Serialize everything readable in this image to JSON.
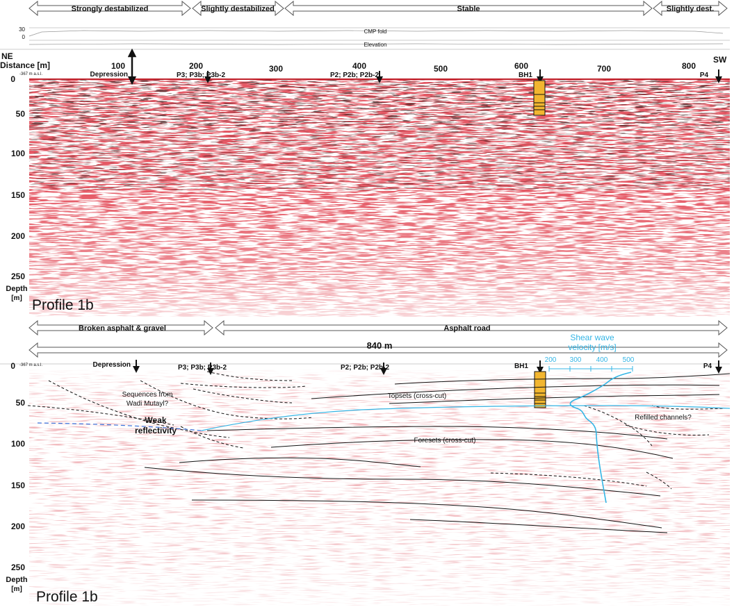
{
  "top": {
    "zones": [
      "Strongly destabilized",
      "Slightly destabilized",
      "Stable",
      "Slightly dest."
    ],
    "cmp_fold_label": "CMP fold",
    "cmp_fold_ticks": [
      "30",
      "0"
    ],
    "elevation_label": "Elevation",
    "ne": "NE",
    "sw": "SW",
    "distance_label": "Distance [m]",
    "masl": "-367 m a.s.l.",
    "distance_ticks": [
      "100",
      "200",
      "300",
      "400",
      "500",
      "600",
      "700",
      "800"
    ],
    "depth_ticks": [
      "0",
      "50",
      "100",
      "150",
      "200",
      "250"
    ],
    "depth_label_1": "Depth",
    "depth_label_2": "[m]",
    "markers": {
      "depression": "Depression",
      "p3": "P3; P3b; P3b-2",
      "p2": "P2; P2b; P2b-2",
      "bh1": "BH1",
      "p4": "P4"
    },
    "profile": "Profile 1b"
  },
  "bottom": {
    "surfaces": [
      "Broken asphalt & gravel",
      "Asphalt road"
    ],
    "length": "840 m",
    "vs_title_1": "Shear wave",
    "vs_title_2": "velocity [m/s]",
    "vs_ticks": [
      "200",
      "300",
      "400",
      "500"
    ],
    "masl": "-367 m a.s.l.",
    "depth_ticks": [
      "0",
      "50",
      "100",
      "150",
      "200",
      "250"
    ],
    "depth_label_1": "Depth",
    "depth_label_2": "[m]",
    "markers": {
      "depression": "Depression",
      "p3": "P3; P3b; P3b-2",
      "p2": "P2; P2b; P2b-2",
      "bh1": "BH1",
      "p4": "P4"
    },
    "annotations": {
      "sequences_1": "Sequences from",
      "sequences_2": "Wadi Mutayl?",
      "weak_1": "Weak",
      "weak_2": "reflectivity",
      "topsets": "Topsets (cross-cut)",
      "refilled": "Refilled channels?",
      "foresets": "Foresets (cross-cut)"
    },
    "profile": "Profile 1b"
  },
  "colors": {
    "seismic": "#c0202a",
    "velocity": "#33b5e5",
    "borehole": "#f2b630"
  }
}
